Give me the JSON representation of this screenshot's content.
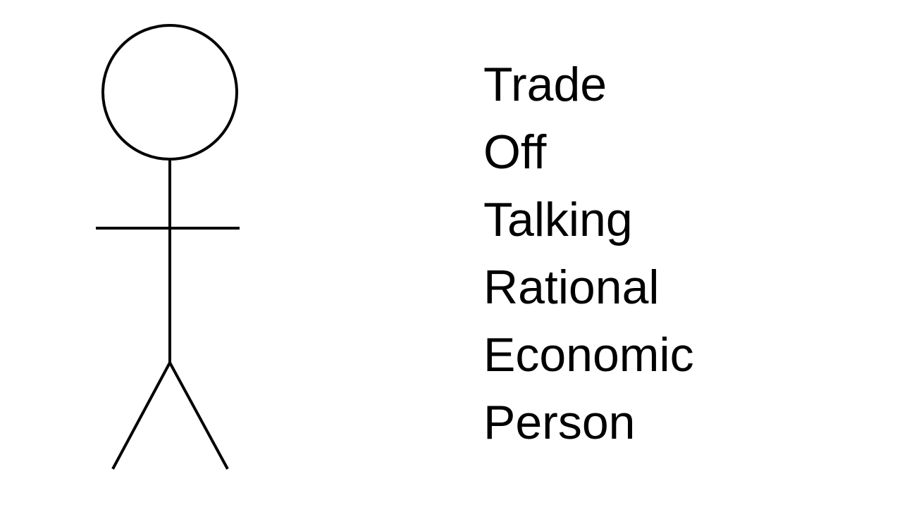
{
  "words": [
    "Trade",
    "Off",
    "Talking",
    "Rational",
    "Economic",
    "Person"
  ],
  "colors": {
    "background": "#ffffff",
    "ink": "#000000"
  }
}
